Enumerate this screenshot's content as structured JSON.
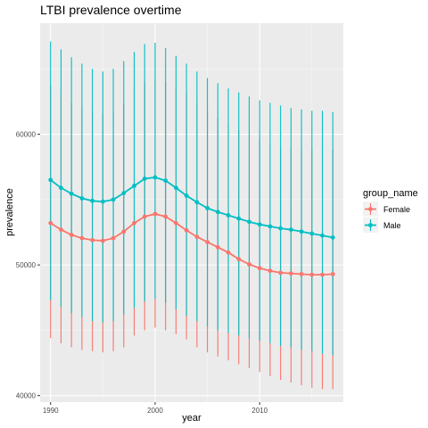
{
  "chart_data": {
    "type": "line",
    "title": "LTBI prevalence overtime",
    "xlabel": "year",
    "ylabel": "prevalence",
    "xlim": [
      1989,
      2018
    ],
    "ylim": [
      39500,
      68500
    ],
    "x_ticks": [
      1990,
      2000,
      2010
    ],
    "y_ticks": [
      40000,
      50000,
      60000
    ],
    "y_tick_labels": [
      "40000",
      "50000",
      "60000"
    ],
    "x_tick_labels": [
      "1990",
      "2000",
      "2010"
    ],
    "grid": true,
    "legend_title": "group_name",
    "legend_position": "right",
    "x": [
      1990,
      1991,
      1992,
      1993,
      1994,
      1995,
      1996,
      1997,
      1998,
      1999,
      2000,
      2001,
      2002,
      2003,
      2004,
      2005,
      2006,
      2007,
      2008,
      2009,
      2010,
      2011,
      2012,
      2013,
      2014,
      2015,
      2016,
      2017
    ],
    "series": [
      {
        "name": "Female",
        "color": "#F8766D",
        "values": [
          53200,
          52700,
          52300,
          52050,
          51900,
          51850,
          52050,
          52550,
          53200,
          53700,
          53900,
          53700,
          53200,
          52650,
          52150,
          51750,
          51350,
          50950,
          50450,
          50050,
          49750,
          49550,
          49400,
          49350,
          49300,
          49250,
          49250,
          49300
        ],
        "lower": [
          44400,
          44000,
          43700,
          43500,
          43400,
          43300,
          43400,
          43700,
          44600,
          45000,
          45200,
          45000,
          44700,
          44300,
          43700,
          43300,
          43000,
          42700,
          42400,
          42100,
          41800,
          41500,
          41200,
          41000,
          40800,
          40600,
          40500,
          40500
        ],
        "upper": [
          63700,
          63100,
          62400,
          62100,
          61800,
          61600,
          61800,
          62300,
          63500,
          64000,
          64300,
          64000,
          63500,
          63100,
          62400,
          61800,
          61200,
          60800,
          60300,
          60000,
          59600,
          59300,
          59000,
          58900,
          58800,
          58800,
          58800,
          58800
        ]
      },
      {
        "name": "Male",
        "color": "#00BFC4",
        "values": [
          56500,
          55900,
          55450,
          55100,
          54900,
          54850,
          55000,
          55500,
          56050,
          56600,
          56700,
          56450,
          55900,
          55300,
          54800,
          54350,
          54050,
          53800,
          53550,
          53300,
          53100,
          52950,
          52800,
          52700,
          52550,
          52400,
          52250,
          52100
        ],
        "lower": [
          47300,
          46800,
          46300,
          46000,
          45700,
          45600,
          45700,
          46200,
          46700,
          47200,
          47400,
          47100,
          46600,
          46100,
          45700,
          45300,
          45000,
          44800,
          44600,
          44400,
          44200,
          44000,
          43800,
          43700,
          43500,
          43400,
          43200,
          43100
        ],
        "upper": [
          67100,
          66500,
          65900,
          65400,
          65000,
          64800,
          65000,
          65600,
          66300,
          66900,
          67000,
          66600,
          66000,
          65400,
          64800,
          64300,
          63900,
          63500,
          63200,
          62900,
          62600,
          62400,
          62200,
          62000,
          61900,
          61800,
          61800,
          61700
        ]
      }
    ]
  }
}
